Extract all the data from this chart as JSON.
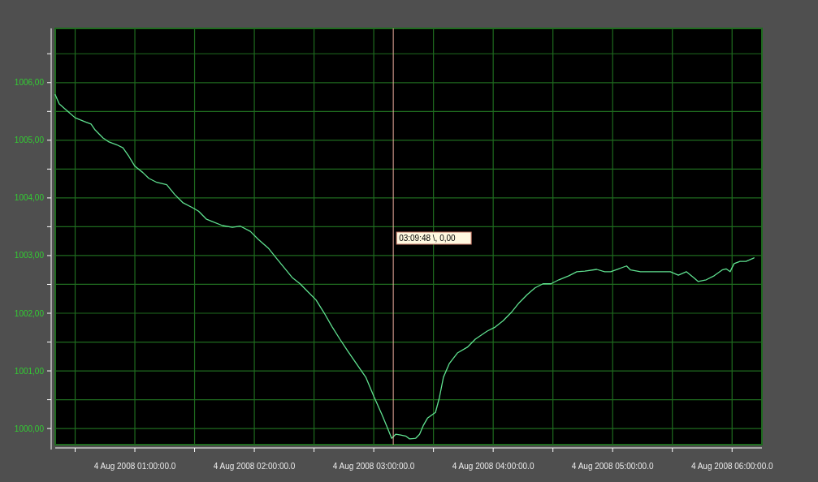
{
  "chart_data": {
    "type": "line",
    "x": [
      "2008-08-04T00:20",
      "2008-08-04T00:22",
      "2008-08-04T00:27",
      "2008-08-04T00:30",
      "2008-08-04T00:35",
      "2008-08-04T00:38",
      "2008-08-04T00:40",
      "2008-08-04T00:44",
      "2008-08-04T00:47",
      "2008-08-04T00:51",
      "2008-08-04T00:54",
      "2008-08-04T00:57",
      "2008-08-04T01:00",
      "2008-08-04T01:04",
      "2008-08-04T01:07",
      "2008-08-04T01:11",
      "2008-08-04T01:16",
      "2008-08-04T01:20",
      "2008-08-04T01:24",
      "2008-08-04T01:29",
      "2008-08-04T01:32",
      "2008-08-04T01:36",
      "2008-08-04T01:39",
      "2008-08-04T01:44",
      "2008-08-04T01:49",
      "2008-08-04T01:53",
      "2008-08-04T01:58",
      "2008-08-04T02:02",
      "2008-08-04T02:07",
      "2008-08-04T02:11",
      "2008-08-04T02:15",
      "2008-08-04T02:19",
      "2008-08-04T02:23",
      "2008-08-04T02:27",
      "2008-08-04T02:31",
      "2008-08-04T02:35",
      "2008-08-04T02:39",
      "2008-08-04T02:43",
      "2008-08-04T02:47",
      "2008-08-04T02:51",
      "2008-08-04T02:56",
      "2008-08-04T03:00",
      "2008-08-04T03:04",
      "2008-08-04T03:07",
      "2008-08-04T03:09",
      "2008-08-04T03:11",
      "2008-08-04T03:13",
      "2008-08-04T03:16",
      "2008-08-04T03:18",
      "2008-08-04T03:21",
      "2008-08-04T03:23",
      "2008-08-04T03:25",
      "2008-08-04T03:27",
      "2008-08-04T03:31",
      "2008-08-04T03:33",
      "2008-08-04T03:35",
      "2008-08-04T03:38",
      "2008-08-04T03:42",
      "2008-08-04T03:47",
      "2008-08-04T03:51",
      "2008-08-04T03:57",
      "2008-08-04T04:01",
      "2008-08-04T04:05",
      "2008-08-04T04:09",
      "2008-08-04T04:13",
      "2008-08-04T04:17",
      "2008-08-04T04:21",
      "2008-08-04T04:25",
      "2008-08-04T04:29",
      "2008-08-04T04:33",
      "2008-08-04T04:38",
      "2008-08-04T04:42",
      "2008-08-04T04:46",
      "2008-08-04T04:52",
      "2008-08-04T04:56",
      "2008-08-04T04:59",
      "2008-08-04T05:03",
      "2008-08-04T05:07",
      "2008-08-04T05:09",
      "2008-08-04T05:14",
      "2008-08-04T05:22",
      "2008-08-04T05:29",
      "2008-08-04T05:33",
      "2008-08-04T05:37",
      "2008-08-04T05:41",
      "2008-08-04T05:43",
      "2008-08-04T05:47",
      "2008-08-04T05:51",
      "2008-08-04T05:55",
      "2008-08-04T05:57",
      "2008-08-04T05:59",
      "2008-08-04T06:01",
      "2008-08-04T06:04",
      "2008-08-04T06:07",
      "2008-08-04T06:11"
    ],
    "series": [
      {
        "color": "#5fe08f",
        "values": [
          1005.79,
          1005.63,
          1005.48,
          1005.39,
          1005.32,
          1005.28,
          1005.18,
          1005.04,
          1004.97,
          1004.92,
          1004.87,
          1004.72,
          1004.55,
          1004.44,
          1004.34,
          1004.27,
          1004.23,
          1004.06,
          1003.92,
          1003.83,
          1003.77,
          1003.63,
          1003.59,
          1003.52,
          1003.49,
          1003.51,
          1003.42,
          1003.28,
          1003.13,
          1002.96,
          1002.79,
          1002.62,
          1002.51,
          1002.37,
          1002.23,
          1002.01,
          1001.77,
          1001.55,
          1001.34,
          1001.14,
          1000.89,
          1000.56,
          1000.25,
          1000.0,
          999.83,
          999.9,
          999.89,
          999.87,
          999.82,
          999.83,
          999.9,
          1000.06,
          1000.18,
          1000.28,
          1000.54,
          1000.89,
          1001.13,
          1001.31,
          1001.41,
          1001.55,
          1001.69,
          1001.76,
          1001.87,
          1002.01,
          1002.18,
          1002.32,
          1002.44,
          1002.51,
          1002.51,
          1002.58,
          1002.65,
          1002.72,
          1002.73,
          1002.76,
          1002.72,
          1002.72,
          1002.77,
          1002.82,
          1002.75,
          1002.72,
          1002.72,
          1002.72,
          1002.66,
          1002.72,
          1002.61,
          1002.55,
          1002.58,
          1002.65,
          1002.75,
          1002.77,
          1002.72,
          1002.86,
          1002.9,
          1002.9,
          1002.96
        ]
      }
    ],
    "xlim": [
      "2008-08-04T00:20",
      "2008-08-04T06:15"
    ],
    "xticks": [
      {
        "value": "2008-08-04T00:30",
        "label": null
      },
      {
        "value": "2008-08-04T01:00",
        "label": "4 Aug 2008 01:00:00.0"
      },
      {
        "value": "2008-08-04T01:30",
        "label": null
      },
      {
        "value": "2008-08-04T02:00",
        "label": "4 Aug 2008 02:00:00.0"
      },
      {
        "value": "2008-08-04T02:30",
        "label": null
      },
      {
        "value": "2008-08-04T03:00",
        "label": "4 Aug 2008 03:00:00.0"
      },
      {
        "value": "2008-08-04T03:30",
        "label": null
      },
      {
        "value": "2008-08-04T04:00",
        "label": "4 Aug 2008 04:00:00.0"
      },
      {
        "value": "2008-08-04T04:30",
        "label": null
      },
      {
        "value": "2008-08-04T05:00",
        "label": "4 Aug 2008 05:00:00.0"
      },
      {
        "value": "2008-08-04T05:30",
        "label": null
      },
      {
        "value": "2008-08-04T06:00",
        "label": "4 Aug 2008 06:00:00.0"
      }
    ],
    "ylim": [
      999.72,
      1006.94
    ],
    "yticks": [
      {
        "value": 1000,
        "label": "1000,00"
      },
      {
        "value": 1000.5,
        "label": null
      },
      {
        "value": 1001,
        "label": "1001,00"
      },
      {
        "value": 1001.5,
        "label": null
      },
      {
        "value": 1002,
        "label": "1002,00"
      },
      {
        "value": 1002.5,
        "label": null
      },
      {
        "value": 1003,
        "label": "1003,00"
      },
      {
        "value": 1003.5,
        "label": null
      },
      {
        "value": 1004,
        "label": "1004,00"
      },
      {
        "value": 1004.5,
        "label": null
      },
      {
        "value": 1005,
        "label": "1005,00"
      },
      {
        "value": 1005.5,
        "label": null
      },
      {
        "value": 1006,
        "label": "1006,00"
      },
      {
        "value": 1006.5,
        "label": null
      }
    ],
    "grid": true,
    "ref_lines": [
      {
        "axis": "x",
        "value": "2008-08-04T03:09:48",
        "label": "03:09:48 \\, 0,00",
        "color": "#f0b0a0"
      }
    ]
  }
}
